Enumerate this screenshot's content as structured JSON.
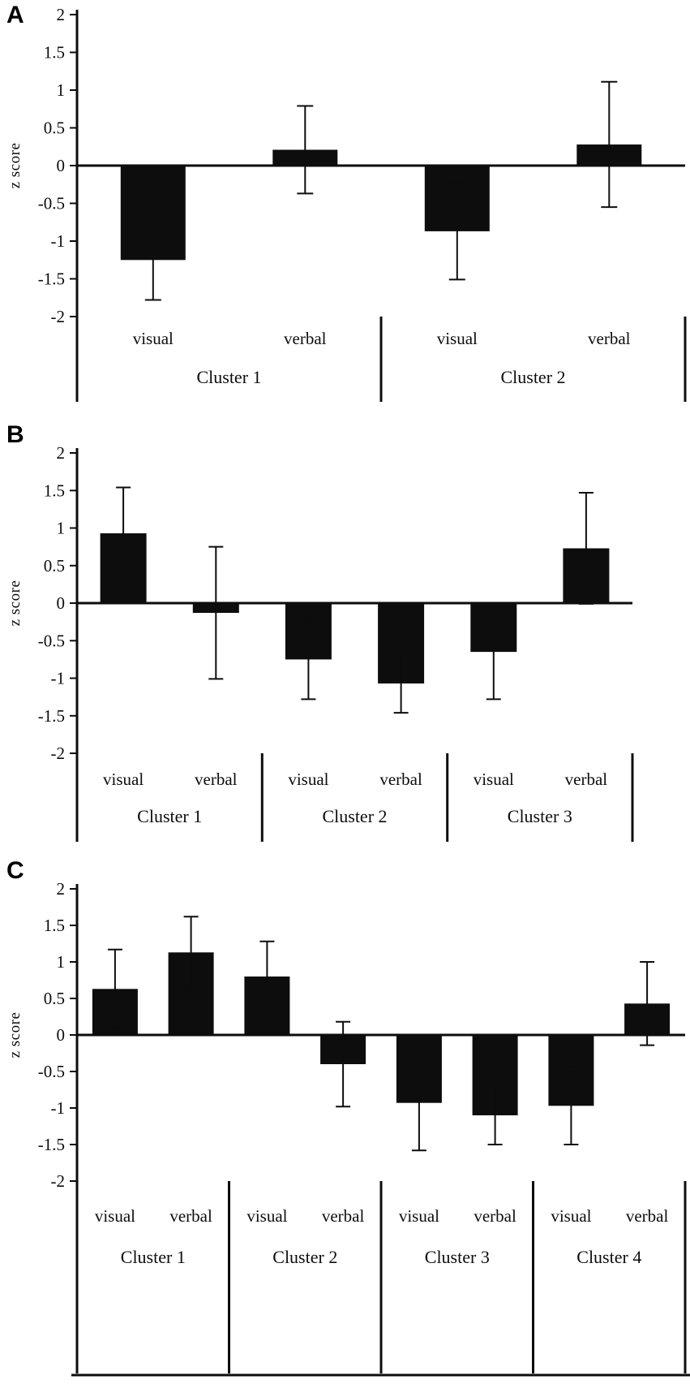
{
  "background_color": "#ffffff",
  "bar_color": "#0d0d0d",
  "chart_data": [
    {
      "type": "bar",
      "panel_label": "A",
      "ylabel": "z score",
      "ylim": [
        -2,
        2
      ],
      "ytick_step": 0.5,
      "ytick_labels": [
        "2",
        "1.5",
        "1",
        "0.5",
        "0",
        "-0.5",
        "-1",
        "-1.5",
        "-2"
      ],
      "clusters": [
        "Cluster 1",
        "Cluster 2"
      ],
      "categories": [
        "visual",
        "verbal"
      ],
      "error_bars": true,
      "bars": [
        {
          "cluster": "Cluster 1",
          "category": "visual",
          "value": -1.25,
          "error": 0.53
        },
        {
          "cluster": "Cluster 1",
          "category": "verbal",
          "value": 0.21,
          "error": 0.58
        },
        {
          "cluster": "Cluster 2",
          "category": "visual",
          "value": -0.87,
          "error": 0.64
        },
        {
          "cluster": "Cluster 2",
          "category": "verbal",
          "value": 0.28,
          "error": 0.83
        }
      ]
    },
    {
      "type": "bar",
      "panel_label": "B",
      "ylabel": "z score",
      "ylim": [
        -2,
        2
      ],
      "ytick_step": 0.5,
      "ytick_labels": [
        "2",
        "1.5",
        "1",
        "0.5",
        "0",
        "-0.5",
        "-1",
        "-1.5",
        "-2"
      ],
      "clusters": [
        "Cluster 1",
        "Cluster 2",
        "Cluster 3"
      ],
      "categories": [
        "visual",
        "verbal"
      ],
      "error_bars": true,
      "bars": [
        {
          "cluster": "Cluster 1",
          "category": "visual",
          "value": 0.93,
          "error": 0.61
        },
        {
          "cluster": "Cluster 1",
          "category": "verbal",
          "value": -0.13,
          "error": 0.88
        },
        {
          "cluster": "Cluster 2",
          "category": "visual",
          "value": -0.75,
          "error": 0.53
        },
        {
          "cluster": "Cluster 2",
          "category": "verbal",
          "value": -1.07,
          "error": 0.39
        },
        {
          "cluster": "Cluster 3",
          "category": "visual",
          "value": -0.65,
          "error": 0.63
        },
        {
          "cluster": "Cluster 3",
          "category": "verbal",
          "value": 0.73,
          "error": 0.74
        }
      ]
    },
    {
      "type": "bar",
      "panel_label": "C",
      "ylabel": "z score",
      "ylim": [
        -2,
        2
      ],
      "ytick_step": 0.5,
      "ytick_labels": [
        "2",
        "1.5",
        "1",
        "0.5",
        "0",
        "-0.5",
        "-1",
        "-1.5",
        "-2"
      ],
      "clusters": [
        "Cluster 1",
        "Cluster 2",
        "Cluster 3",
        "Cluster 4"
      ],
      "categories": [
        "visual",
        "verbal"
      ],
      "error_bars": true,
      "bars": [
        {
          "cluster": "Cluster 1",
          "category": "visual",
          "value": 0.63,
          "error": 0.54
        },
        {
          "cluster": "Cluster 1",
          "category": "verbal",
          "value": 1.13,
          "error": 0.49
        },
        {
          "cluster": "Cluster 2",
          "category": "visual",
          "value": 0.8,
          "error": 0.48
        },
        {
          "cluster": "Cluster 2",
          "category": "verbal",
          "value": -0.4,
          "error": 0.58
        },
        {
          "cluster": "Cluster 3",
          "category": "visual",
          "value": -0.93,
          "error": 0.65
        },
        {
          "cluster": "Cluster 3",
          "category": "verbal",
          "value": -1.1,
          "error": 0.4
        },
        {
          "cluster": "Cluster 4",
          "category": "visual",
          "value": -0.97,
          "error": 0.53
        },
        {
          "cluster": "Cluster 4",
          "category": "verbal",
          "value": 0.43,
          "error": 0.57
        }
      ]
    }
  ]
}
